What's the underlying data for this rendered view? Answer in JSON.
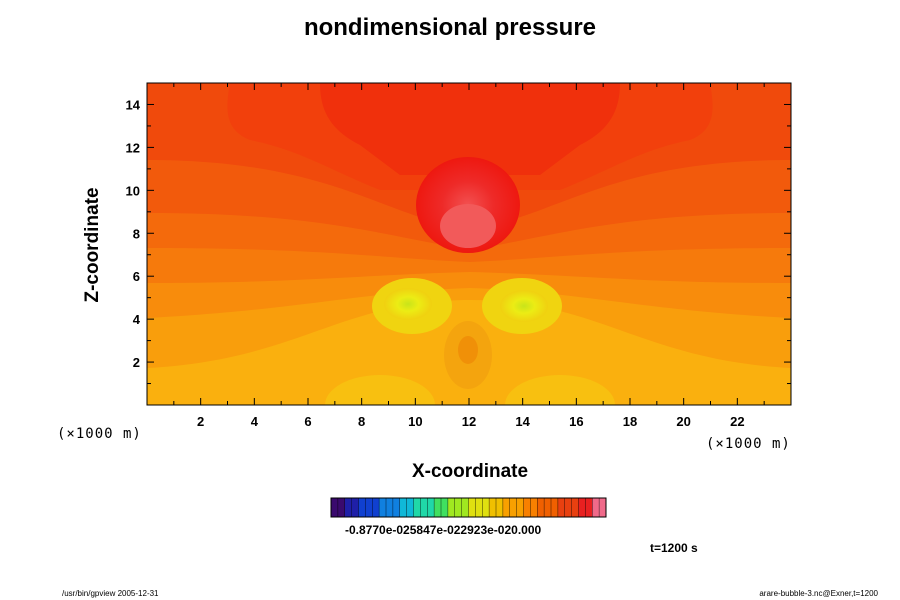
{
  "chart_data": {
    "type": "heatmap",
    "title": "nondimensional pressure",
    "xlabel": "X-coordinate",
    "ylabel": "Z-coordinate",
    "x_unit_left": "(×1000 m)",
    "x_unit_right": "(×1000 m)",
    "xlim": [
      0,
      24
    ],
    "ylim": [
      0,
      15
    ],
    "x_ticks": [
      2,
      4,
      6,
      8,
      10,
      12,
      14,
      16,
      18,
      20,
      22
    ],
    "y_ticks": [
      2,
      4,
      6,
      8,
      10,
      12,
      14
    ],
    "colorbar": {
      "labels": "-0.8770e-025847e-022923e-020.000",
      "colors": [
        "#3a0a6e",
        "#1f1fa8",
        "#1040d0",
        "#1080e0",
        "#10b8d8",
        "#20d8a8",
        "#40e060",
        "#a0e820",
        "#e0e010",
        "#f0c000",
        "#f8a000",
        "#f88000",
        "#f06000",
        "#e84010",
        "#e82020",
        "#f06a8a"
      ]
    },
    "annotations": {
      "time": "t=1200 s",
      "footer_left": "/usr/bin/gpview 2005-12-31",
      "footer_right": "arare-bubble-3.nc@Exner,t=1200"
    }
  }
}
